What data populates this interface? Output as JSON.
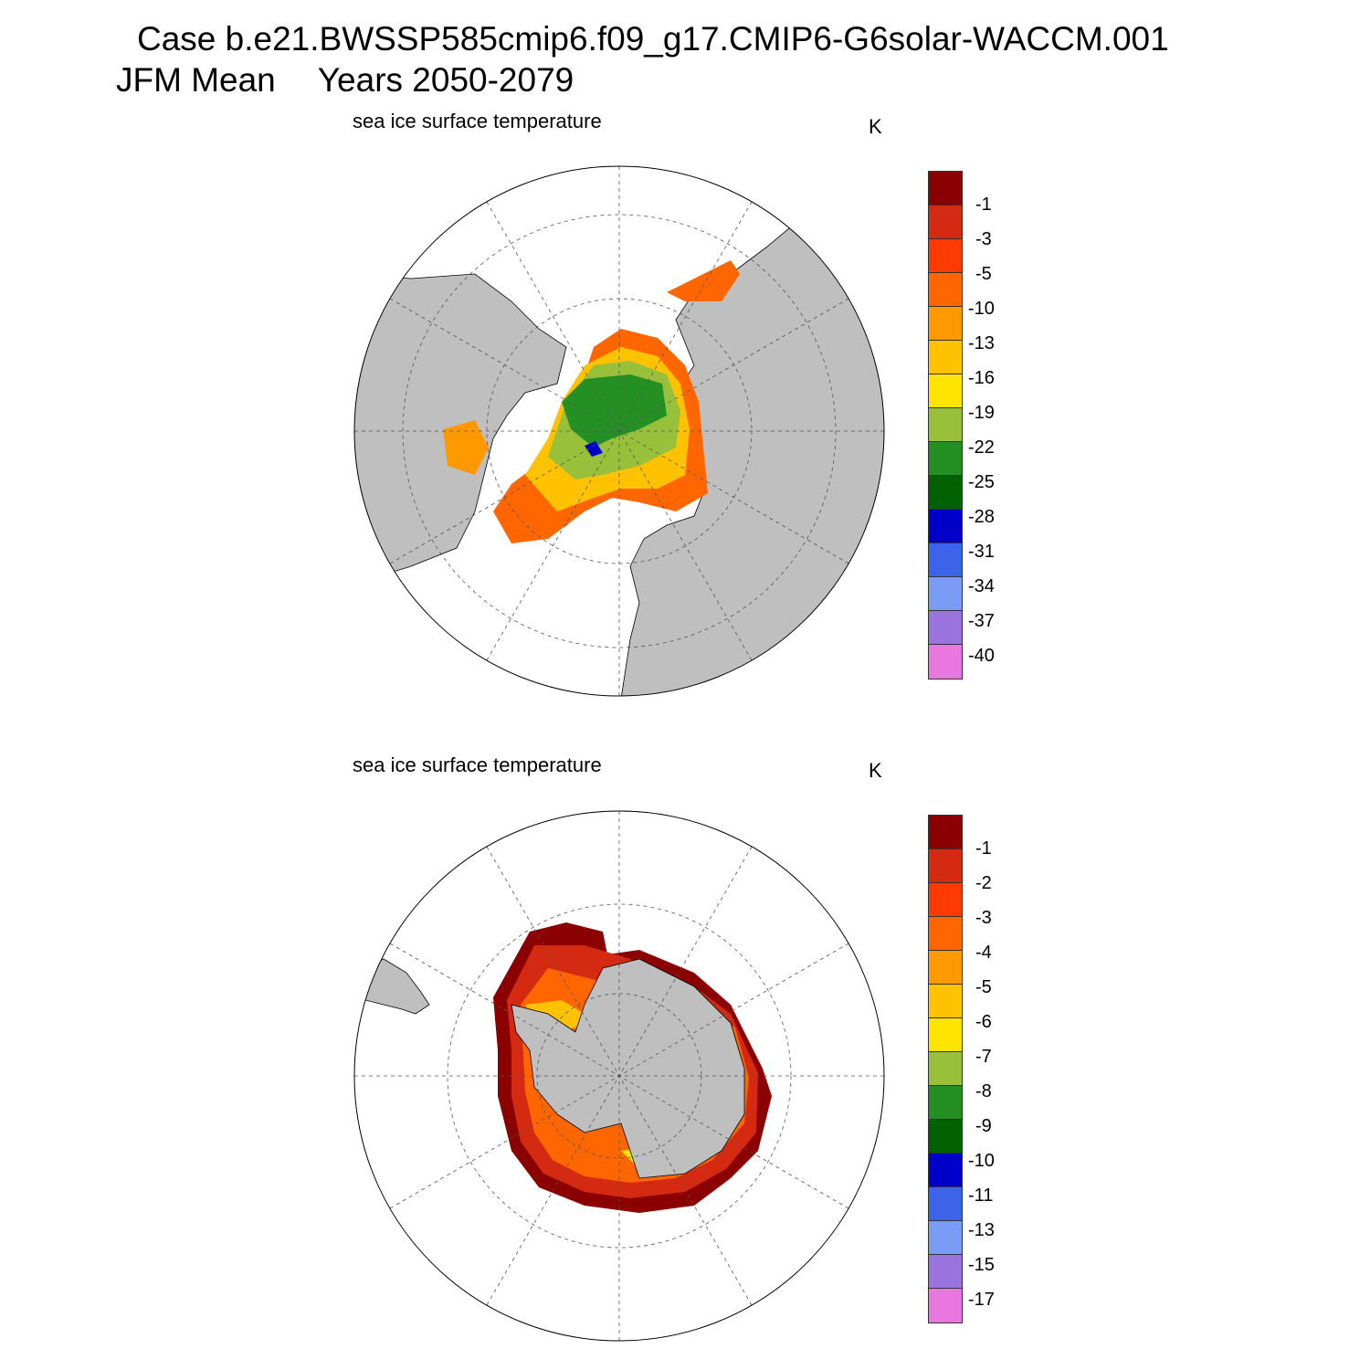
{
  "header": {
    "case_line": "Case b.e21.BWSSP585cmip6.f09_g17.CMIP6-G6solar-WACCM.001",
    "period": "JFM Mean",
    "years": "Years 2050-2079"
  },
  "panels": [
    {
      "name": "north",
      "title": "sea ice surface temperature",
      "units": "K",
      "colorbar": {
        "labels": [
          "-1",
          "-3",
          "-5",
          "-10",
          "-13",
          "-16",
          "-19",
          "-22",
          "-25",
          "-28",
          "-31",
          "-34",
          "-37",
          "-40"
        ],
        "colors": [
          "#8b0000",
          "#d42a12",
          "#ff3a00",
          "#ff6600",
          "#ff9900",
          "#ffc200",
          "#ffe400",
          "#98c03a",
          "#248f22",
          "#006100",
          "#0000c8",
          "#3d64e8",
          "#7a9cf4",
          "#9a74de",
          "#e878e0"
        ]
      }
    },
    {
      "name": "south",
      "title": "sea ice surface temperature",
      "units": "K",
      "colorbar": {
        "labels": [
          "-1",
          "-2",
          "-3",
          "-4",
          "-5",
          "-6",
          "-7",
          "-8",
          "-9",
          "-10",
          "-11",
          "-13",
          "-15",
          "-17"
        ],
        "colors": [
          "#8b0000",
          "#d42a12",
          "#ff3a00",
          "#ff6600",
          "#ff9900",
          "#ffc200",
          "#ffe400",
          "#98c03a",
          "#248f22",
          "#006100",
          "#0000c8",
          "#3d64e8",
          "#7a9cf4",
          "#9a74de",
          "#e878e0"
        ]
      }
    }
  ]
}
